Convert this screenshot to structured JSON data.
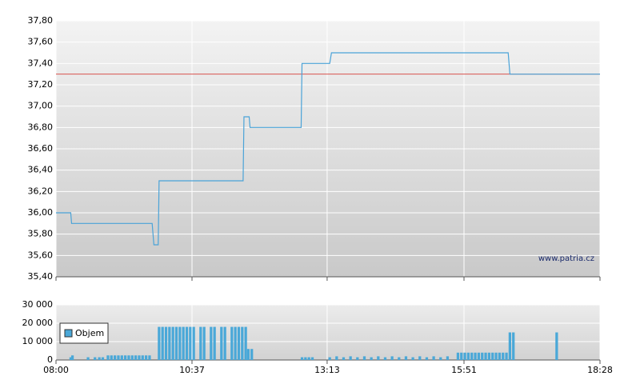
{
  "chart_data": [
    {
      "type": "line",
      "source": "www.patria.cz",
      "x": [
        480,
        497,
        498,
        591,
        593,
        598,
        599,
        696,
        697,
        703,
        704,
        763,
        764,
        796,
        798,
        1002,
        1004,
        1108
      ],
      "series": [
        {
          "color": "#4aa3d8",
          "values": [
            36.0,
            36.0,
            35.9,
            35.9,
            35.7,
            35.7,
            36.3,
            36.3,
            36.9,
            36.9,
            36.8,
            36.8,
            37.4,
            37.4,
            37.5,
            37.5,
            37.3,
            37.3
          ]
        }
      ],
      "reference_line": {
        "value": 37.3,
        "color": "#d9534f"
      },
      "xlim": [
        480,
        1108
      ],
      "ylim": [
        35.4,
        37.8
      ],
      "yticks": [
        {
          "value": 35.4,
          "label": "35,40"
        },
        {
          "value": 35.6,
          "label": "35,60"
        },
        {
          "value": 35.8,
          "label": "35,80"
        },
        {
          "value": 36.0,
          "label": "36,00"
        },
        {
          "value": 36.2,
          "label": "36,20"
        },
        {
          "value": 36.4,
          "label": "36,40"
        },
        {
          "value": 36.6,
          "label": "36,60"
        },
        {
          "value": 36.8,
          "label": "36,80"
        },
        {
          "value": 37.0,
          "label": "37,00"
        },
        {
          "value": 37.2,
          "label": "37,20"
        },
        {
          "value": 37.4,
          "label": "37,40"
        },
        {
          "value": 37.6,
          "label": "37,60"
        },
        {
          "value": 37.8,
          "label": "37,80"
        }
      ],
      "grid": true
    },
    {
      "type": "bar",
      "x": [
        497,
        499,
        517,
        525,
        530,
        534,
        540,
        544,
        548,
        552,
        556,
        560,
        564,
        568,
        572,
        576,
        580,
        584,
        588,
        599,
        603,
        607,
        611,
        615,
        619,
        623,
        627,
        631,
        635,
        639,
        647,
        651,
        659,
        663,
        671,
        675,
        683,
        687,
        691,
        695,
        699,
        702,
        706,
        764,
        768,
        772,
        776,
        796,
        804,
        812,
        820,
        828,
        836,
        844,
        852,
        860,
        868,
        876,
        884,
        892,
        900,
        908,
        916,
        924,
        932,
        944,
        948,
        952,
        956,
        960,
        964,
        968,
        972,
        976,
        980,
        984,
        988,
        992,
        996,
        1000,
        1004,
        1008,
        1058
      ],
      "series": [
        {
          "name": "Objem",
          "color": "#4aa8d8",
          "values": [
            1500,
            2500,
            1500,
            1500,
            1500,
            1500,
            2500,
            2500,
            2500,
            2500,
            2500,
            2500,
            2500,
            2500,
            2500,
            2500,
            2500,
            2500,
            2500,
            18000,
            18000,
            18000,
            18000,
            18000,
            18000,
            18000,
            18000,
            18000,
            18000,
            18000,
            18000,
            18000,
            18000,
            18000,
            18000,
            18000,
            18000,
            18000,
            18000,
            18000,
            18000,
            6000,
            6000,
            1500,
            1500,
            1500,
            1500,
            1500,
            2000,
            1500,
            2000,
            1500,
            2000,
            1500,
            2000,
            1500,
            2000,
            1500,
            2000,
            1500,
            2000,
            1500,
            2000,
            1500,
            2000,
            4000,
            4000,
            4000,
            4000,
            4000,
            4000,
            4000,
            4000,
            4000,
            4000,
            4000,
            4000,
            4000,
            4000,
            4000,
            15000,
            15000,
            15000
          ]
        }
      ],
      "xlim": [
        480,
        1108
      ],
      "xticks": [
        {
          "value": 480,
          "label": "08:00"
        },
        {
          "value": 637,
          "label": "10:37"
        },
        {
          "value": 793,
          "label": "13:13"
        },
        {
          "value": 951,
          "label": "15:51"
        },
        {
          "value": 1108,
          "label": "18:28"
        }
      ],
      "ylim": [
        0,
        30000
      ],
      "yticks": [
        0,
        {
          "value": 10000,
          "label": "10 000"
        },
        {
          "value": 20000,
          "label": "20 000"
        },
        {
          "value": 30000,
          "label": "30 000"
        }
      ],
      "grid": true,
      "legend": "upper-left"
    }
  ]
}
